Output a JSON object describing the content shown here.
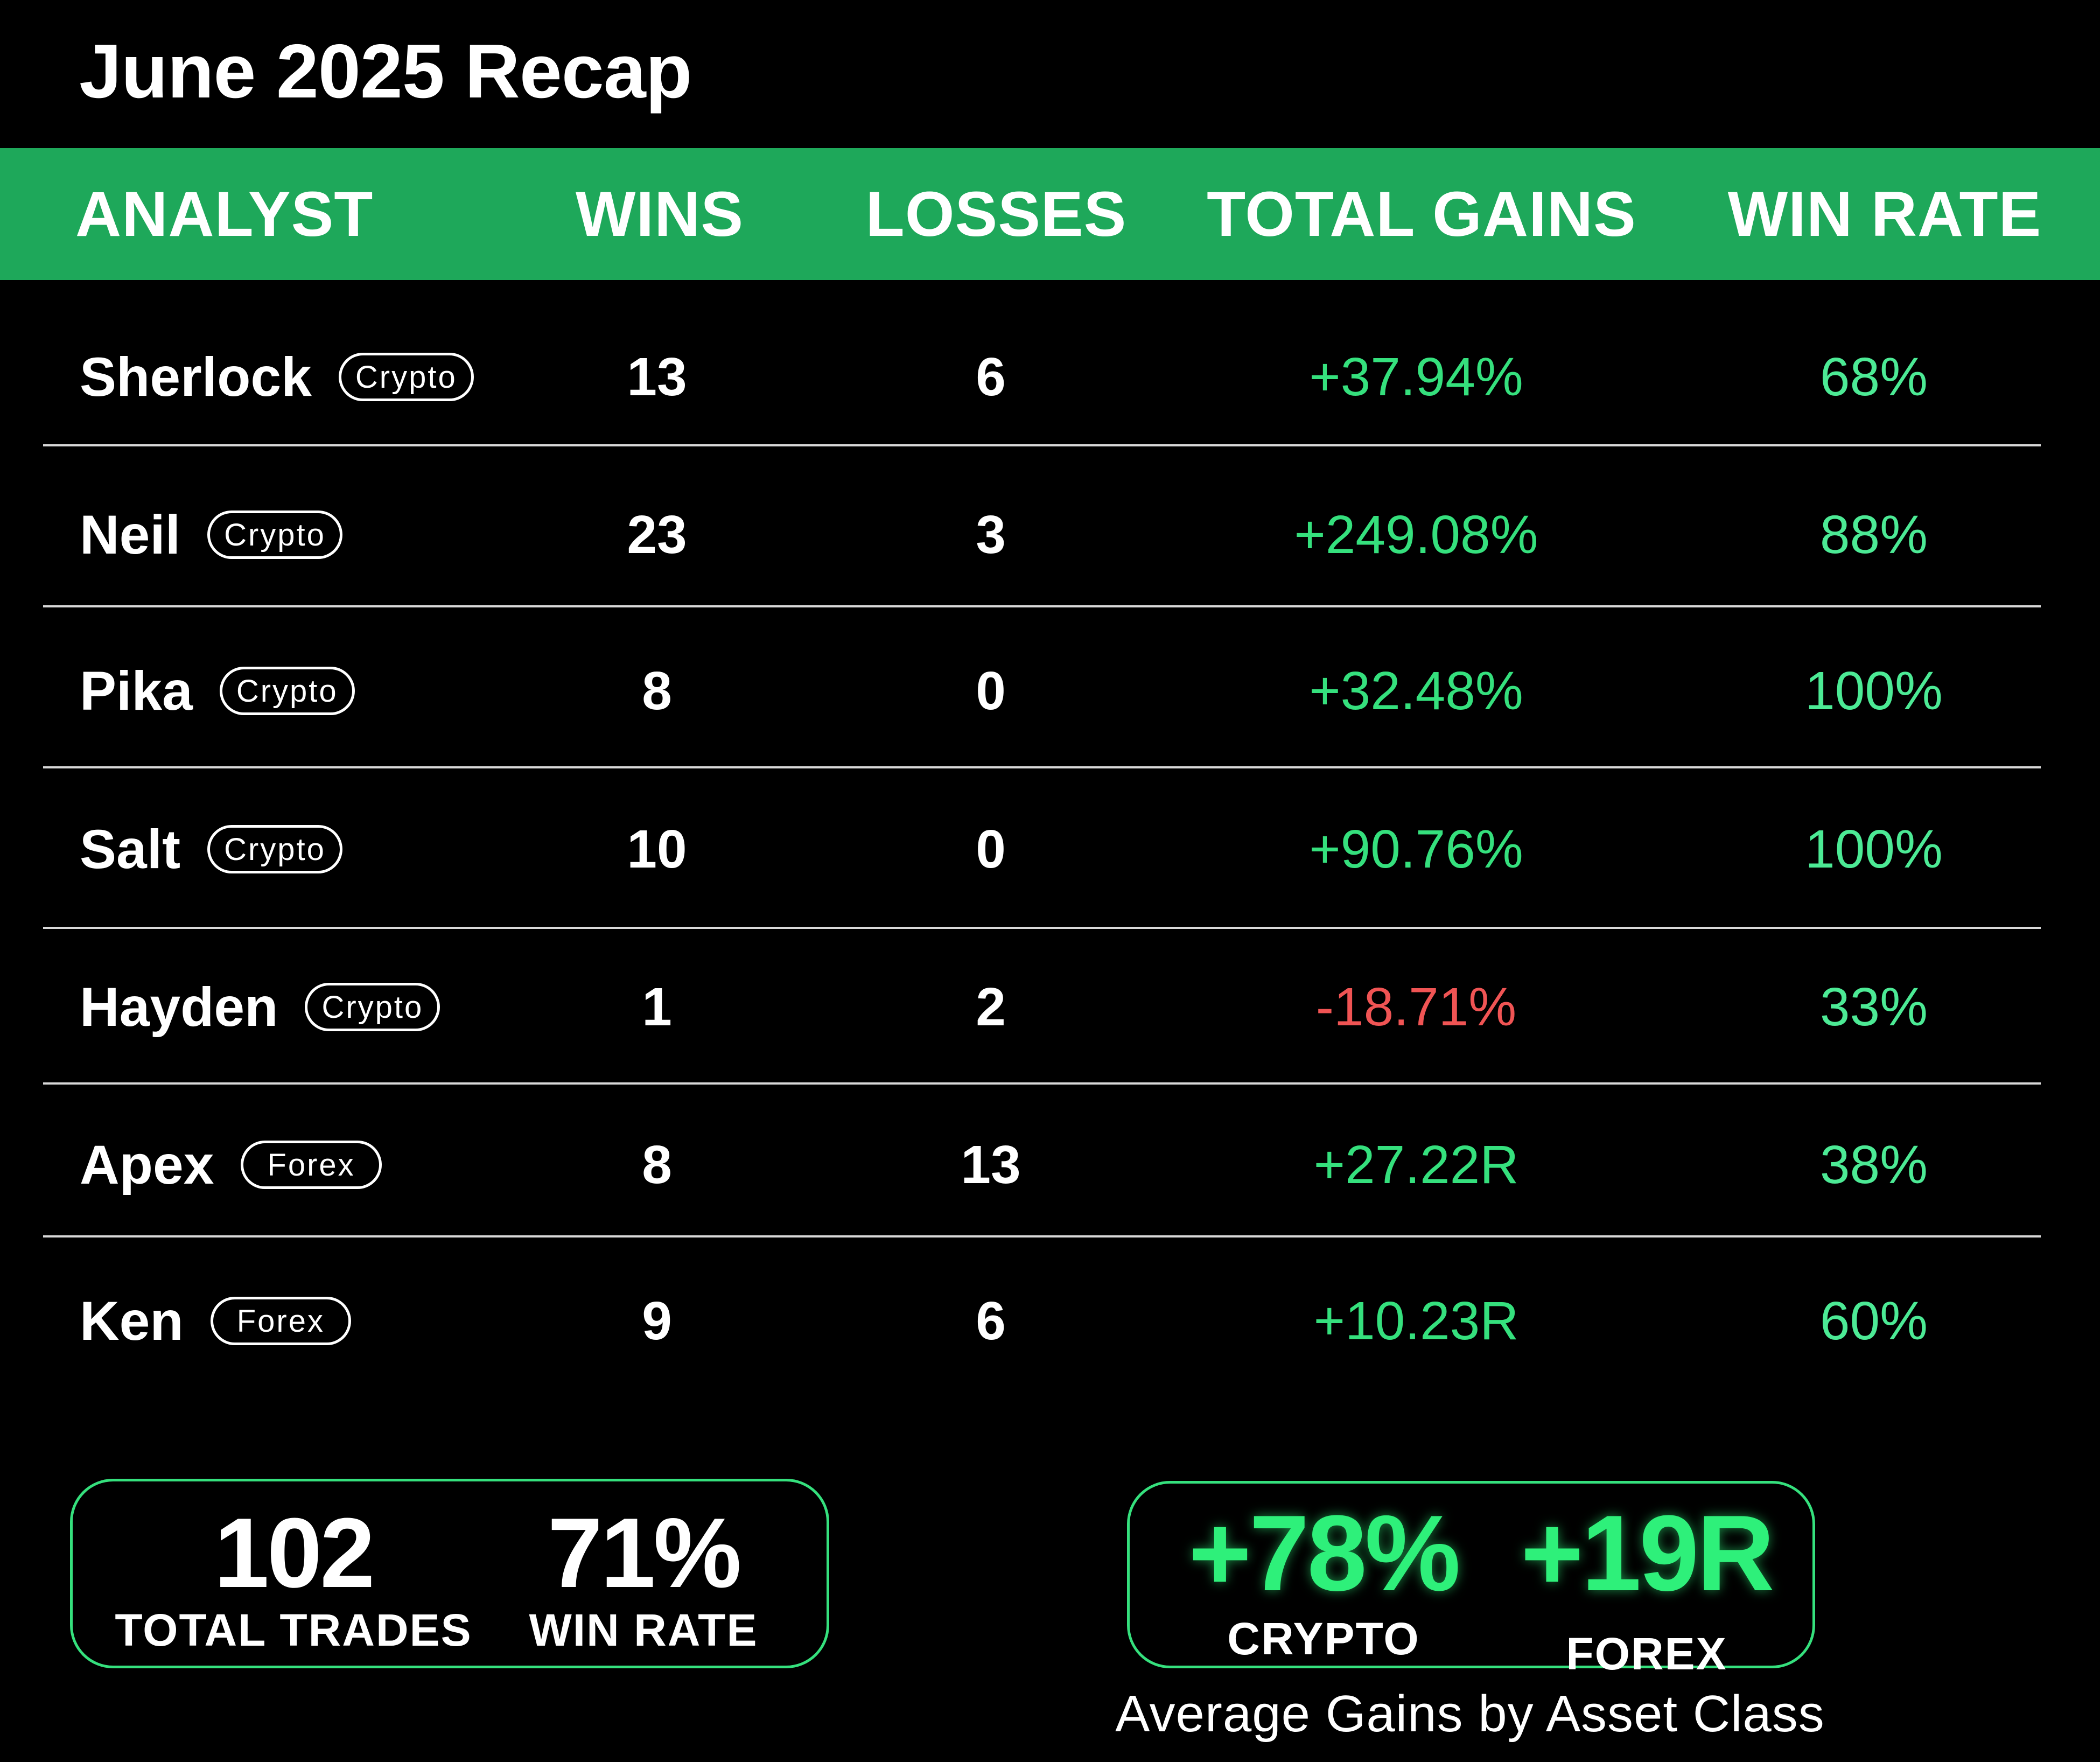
{
  "title": "June 2025 Recap",
  "header": {
    "analyst": "ANALYST",
    "wins": "WINS",
    "losses": "LOSSES",
    "total_gains": "TOTAL GAINS",
    "win_rate": "WIN RATE"
  },
  "rows": [
    {
      "name": "Sherlock",
      "tag": "Crypto",
      "wins": "13",
      "losses": "6",
      "gains": "+37.94%",
      "win_rate": "68%"
    },
    {
      "name": "Neil",
      "tag": "Crypto",
      "wins": "23",
      "losses": "3",
      "gains": "+249.08%",
      "win_rate": "88%"
    },
    {
      "name": "Pika",
      "tag": "Crypto",
      "wins": "8",
      "losses": "0",
      "gains": "+32.48%",
      "win_rate": "100%"
    },
    {
      "name": "Salt",
      "tag": "Crypto",
      "wins": "10",
      "losses": "0",
      "gains": "+90.76%",
      "win_rate": "100%"
    },
    {
      "name": "Hayden",
      "tag": "Crypto",
      "wins": "1",
      "losses": "2",
      "gains": "-18.71%",
      "win_rate": "33%"
    },
    {
      "name": "Apex",
      "tag": "Forex",
      "wins": "8",
      "losses": "13",
      "gains": "+27.22R",
      "win_rate": "38%"
    },
    {
      "name": "Ken",
      "tag": "Forex",
      "wins": "9",
      "losses": "6",
      "gains": "+10.23R",
      "win_rate": "60%"
    }
  ],
  "summary": {
    "total_trades_value": "102",
    "total_trades_label": "TOTAL TRADES",
    "win_rate_value": "71%",
    "win_rate_label": "WIN RATE"
  },
  "asset_class": {
    "crypto_value": "+78%",
    "crypto_label": "CRYPTO",
    "forex_value": "+19R",
    "forex_label": "FOREX",
    "caption": "Average Gains by Asset Class"
  },
  "colors": {
    "header_green": "#1ea85a",
    "positive": "#35e07d",
    "negative": "#f05454",
    "background": "#000000"
  }
}
